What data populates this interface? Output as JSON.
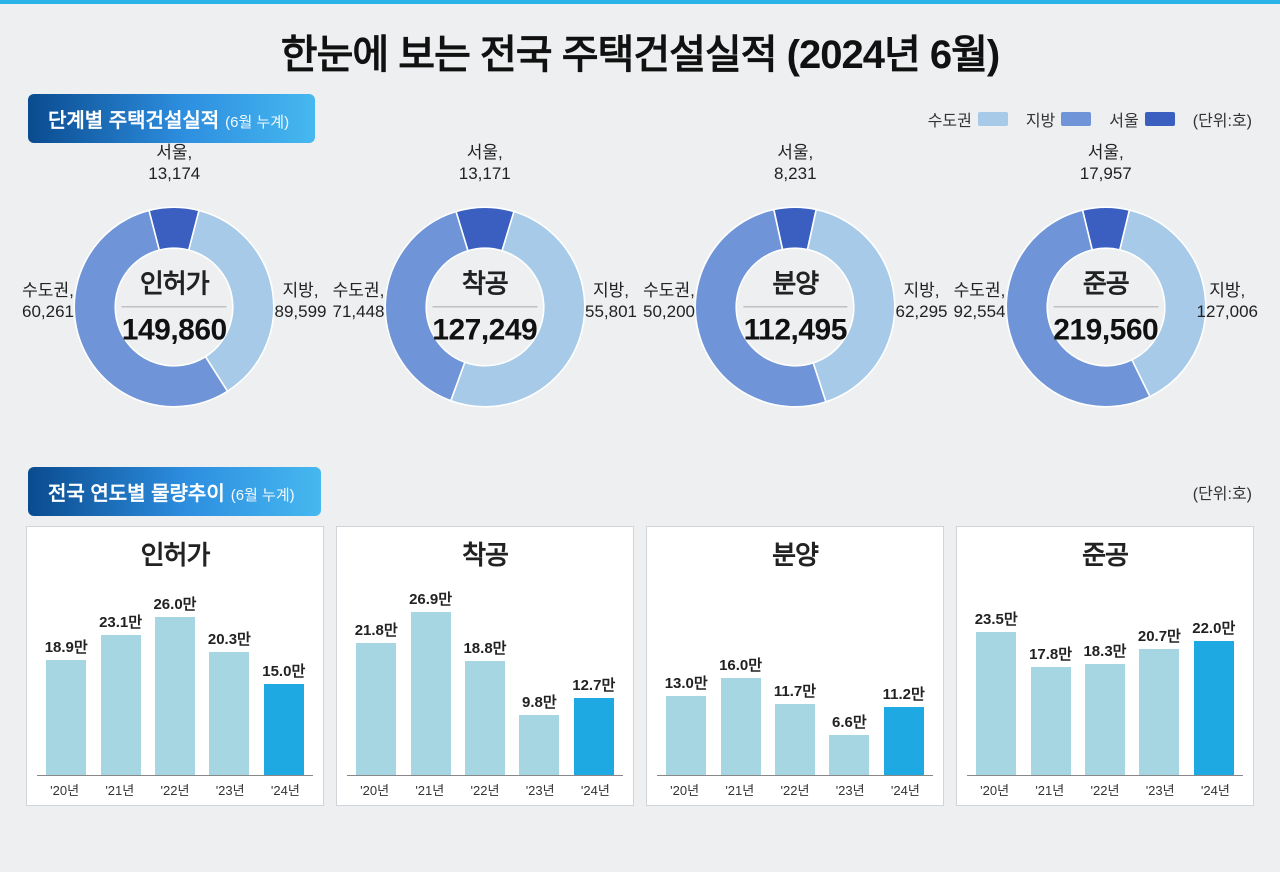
{
  "title": "한눈에 보는 전국 주택건설실적 (2024년 6월)",
  "colors": {
    "metro": "#a6cae8",
    "rural": "#6f94d8",
    "seoul": "#3a5fc0",
    "bar_normal": "#a5d6e2",
    "bar_current": "#1fa9e3",
    "bg": "#edeff1",
    "card_border": "#d0d4d8"
  },
  "section1": {
    "pill_main": "단계별 주택건설실적",
    "pill_sub": "(6월 누계)",
    "legend": [
      {
        "label": "수도권",
        "color": "#a6cae8"
      },
      {
        "label": "지방",
        "color": "#6f94d8"
      },
      {
        "label": "서울",
        "color": "#3a5fc0"
      }
    ],
    "unit": "(단위:호)",
    "donuts": [
      {
        "category": "인허가",
        "total_fmt": "149,860",
        "slices": [
          {
            "name": "수도권",
            "value": 60261,
            "fmt": "60,261",
            "color": "#a6cae8"
          },
          {
            "name": "지방",
            "value": 89599,
            "fmt": "89,599",
            "color": "#6f94d8"
          },
          {
            "name": "서울",
            "value": 13174,
            "fmt": "13,174",
            "color": "#3a5fc0"
          }
        ]
      },
      {
        "category": "착공",
        "total_fmt": "127,249",
        "slices": [
          {
            "name": "수도권",
            "value": 71448,
            "fmt": "71,448",
            "color": "#a6cae8"
          },
          {
            "name": "지방",
            "value": 55801,
            "fmt": "55,801",
            "color": "#6f94d8"
          },
          {
            "name": "서울",
            "value": 13171,
            "fmt": "13,171",
            "color": "#3a5fc0"
          }
        ]
      },
      {
        "category": "분양",
        "total_fmt": "112,495",
        "slices": [
          {
            "name": "수도권",
            "value": 50200,
            "fmt": "50,200",
            "color": "#a6cae8"
          },
          {
            "name": "지방",
            "value": 62295,
            "fmt": "62,295",
            "color": "#6f94d8"
          },
          {
            "name": "서울",
            "value": 8231,
            "fmt": "8,231",
            "color": "#3a5fc0"
          }
        ]
      },
      {
        "category": "준공",
        "total_fmt": "219,560",
        "slices": [
          {
            "name": "수도권",
            "value": 92554,
            "fmt": "92,554",
            "color": "#a6cae8"
          },
          {
            "name": "지방",
            "value": 127006,
            "fmt": "127,006",
            "color": "#6f94d8"
          },
          {
            "name": "서울",
            "value": 17957,
            "fmt": "17,957",
            "color": "#3a5fc0"
          }
        ]
      }
    ]
  },
  "section2": {
    "pill_main": "전국 연도별 물량추이",
    "pill_sub": "(6월 누계)",
    "unit": "(단위:호)",
    "x_labels": [
      "'20년",
      "'21년",
      "'22년",
      "'23년",
      "'24년"
    ],
    "y_max": 28,
    "charts": [
      {
        "title": "인허가",
        "values": [
          18.9,
          23.1,
          26.0,
          20.3,
          15.0
        ],
        "labels": [
          "18.9만",
          "23.1만",
          "26.0만",
          "20.3만",
          "15.0만"
        ]
      },
      {
        "title": "착공",
        "values": [
          21.8,
          26.9,
          18.8,
          9.8,
          12.7
        ],
        "labels": [
          "21.8만",
          "26.9만",
          "18.8만",
          "9.8만",
          "12.7만"
        ]
      },
      {
        "title": "분양",
        "values": [
          13.0,
          16.0,
          11.7,
          6.6,
          11.2
        ],
        "labels": [
          "13.0만",
          "16.0만",
          "11.7만",
          "6.6만",
          "11.2만"
        ]
      },
      {
        "title": "준공",
        "values": [
          23.5,
          17.8,
          18.3,
          20.7,
          22.0
        ],
        "labels": [
          "23.5만",
          "17.8만",
          "18.3만",
          "20.7만",
          "22.0만"
        ]
      }
    ]
  }
}
